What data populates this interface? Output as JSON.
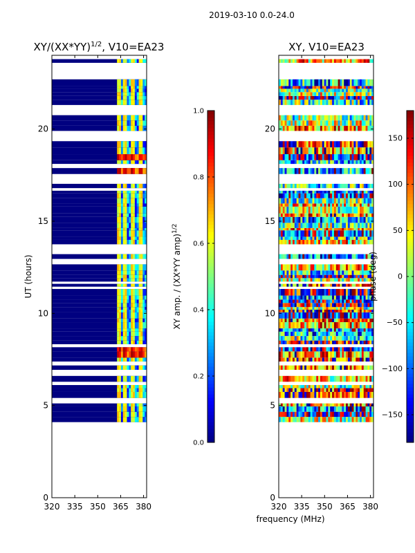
{
  "figure": {
    "suptitle": "2019-03-10 0.0-24.0",
    "xlabel": "frequency (MHz)"
  },
  "chart_data": [
    {
      "type": "heatmap",
      "title_main": "XY/(XX*YY)",
      "title_sup": "1/2",
      "title_rest": ", V10=EA23",
      "xlabel": "",
      "ylabel": "UT (hours)",
      "xlim": [
        320,
        382
      ],
      "ylim": [
        0,
        24
      ],
      "xticks": [
        320,
        335,
        350,
        365,
        380
      ],
      "yticks": [
        0,
        5,
        10,
        15,
        20
      ],
      "colormap": "jet",
      "kind": "amplitude",
      "colorbar": {
        "label_main": "XY amp. / (XX*YY amp)",
        "label_sup": "1/2",
        "range": [
          0.0,
          1.0
        ],
        "ticks": [
          0.0,
          0.2,
          0.4,
          0.6,
          0.8,
          1.0
        ],
        "tick_labels": [
          "0.0",
          "0.2",
          "0.4",
          "0.6",
          "0.8",
          "1.0"
        ]
      },
      "hot_bands_hours": [
        7.9,
        17.6,
        18.0,
        18.6
      ],
      "bright_channels_mhz": [
        364,
        368,
        373,
        378
      ]
    },
    {
      "type": "heatmap",
      "title_main": "XY, V10=EA23",
      "title_sup": "",
      "title_rest": "",
      "xlabel": "",
      "ylabel": "",
      "xlim": [
        320,
        382
      ],
      "ylim": [
        0,
        24
      ],
      "xticks": [
        320,
        335,
        350,
        365,
        380
      ],
      "yticks": [
        0,
        5,
        10,
        15,
        20
      ],
      "colormap": "jet",
      "kind": "phase",
      "colorbar": {
        "label_main": "phase (deg)",
        "label_sup": "",
        "range": [
          -180,
          180
        ],
        "ticks": [
          -150,
          -100,
          -50,
          0,
          50,
          100,
          150
        ],
        "tick_labels": [
          "−150",
          "−100",
          "−50",
          "0",
          "50",
          "100",
          "150"
        ]
      }
    }
  ],
  "observation": {
    "data_start_hour": 4.1,
    "data_end_hour": 24.0,
    "gaps_hours": [
      [
        5.1,
        5.25
      ],
      [
        5.45,
        5.7
      ],
      [
        7.7,
        7.8
      ],
      [
        13.1,
        13.25
      ],
      [
        16.85,
        17.2
      ],
      [
        19.2,
        19.65
      ],
      [
        22.55,
        23.55
      ]
    ]
  }
}
